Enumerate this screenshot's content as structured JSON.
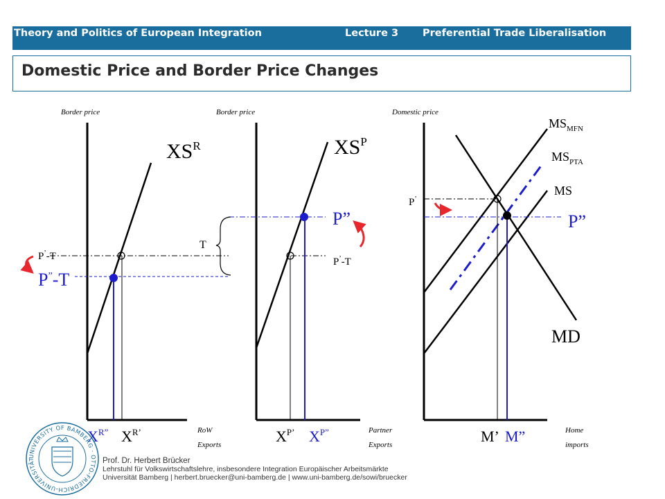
{
  "header": {
    "course": "Theory and Politics of European Integration",
    "lecture": "Lecture 3",
    "topic": "Preferential Trade Liberalisation"
  },
  "slide_title": "Domestic Price and Border Price Changes",
  "panels": {
    "row": {
      "axis_label": "Border price",
      "curve": "XS",
      "curve_sup": "R",
      "price_old": "P",
      "price_old_sup": "’",
      "price_old_suffix": "-T",
      "price_new": "P",
      "price_new_sup": "”",
      "price_new_suffix": "-T",
      "qty_new": "X",
      "qty_new_sup": "R”",
      "qty_old": "X",
      "qty_old_sup": "R’",
      "x_label_1": "RoW",
      "x_label_2": "Exports"
    },
    "partner": {
      "axis_label": "Border price",
      "curve": "XS",
      "curve_sup": "P",
      "tariff": "T",
      "price_new": "P”",
      "price_old": "P",
      "price_old_sup": "’",
      "price_old_suffix": "-T",
      "qty_old": "X",
      "qty_old_sup": "P’",
      "qty_new": "X",
      "qty_new_sup": "P”",
      "x_label_1": "Partner",
      "x_label_2": "Exports"
    },
    "home": {
      "axis_label": "Domestic price",
      "ms_mfn": "MS",
      "ms_mfn_sub": "MFN",
      "ms_pta": "MS",
      "ms_pta_sub": "PTA",
      "ms": "MS",
      "md": "MD",
      "price_old": "P",
      "price_old_sup": "’",
      "price_new": "P”",
      "qty_old": "M’",
      "qty_new": "M”",
      "x_label_1": "Home",
      "x_label_2": "imports"
    }
  },
  "colors": {
    "header_bg": "#1a6e9e",
    "blue": "#1c1ccc",
    "arrow_red": "#e8262e",
    "black": "#000000"
  },
  "footer": {
    "name": "Prof. Dr. Herbert Brücker",
    "chair": "Lehrstuhl für Volkswirtschaftslehre, insbesondere Integration Europäischer Arbeitsmärkte",
    "contact": "Universität Bamberg | herbert.bruecker@uni-bamberg.de | www.uni-bamberg.de/sowi/bruecker",
    "seal_text": "UNIVERSITY OF BAMBERG · OTTO-FRIEDRICH-UNIVERSITÄT BAMBERG"
  }
}
